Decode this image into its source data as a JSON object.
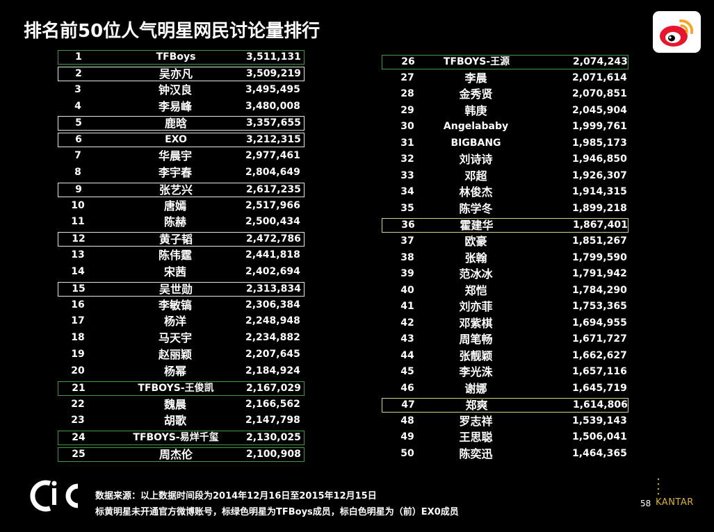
{
  "title": "排名前50位人气明星网民讨论量排行",
  "rankings": [
    {
      "rank": "1",
      "name": "TFBoys",
      "value": "3,511,131",
      "highlight": "green"
    },
    {
      "rank": "2",
      "name": "吴亦凡",
      "value": "3,509,219",
      "highlight": "white"
    },
    {
      "rank": "3",
      "name": "钟汉良",
      "value": "3,495,495",
      "highlight": ""
    },
    {
      "rank": "4",
      "name": "李易峰",
      "value": "3,480,008",
      "highlight": ""
    },
    {
      "rank": "5",
      "name": "鹿晗",
      "value": "3,357,655",
      "highlight": "white"
    },
    {
      "rank": "6",
      "name": "EXO",
      "value": "3,212,315",
      "highlight": "white"
    },
    {
      "rank": "7",
      "name": "华晨宇",
      "value": "2,977,461",
      "highlight": ""
    },
    {
      "rank": "8",
      "name": "李宇春",
      "value": "2,804,649",
      "highlight": ""
    },
    {
      "rank": "9",
      "name": "张艺兴",
      "value": "2,617,235",
      "highlight": "white"
    },
    {
      "rank": "10",
      "name": "唐嫣",
      "value": "2,517,966",
      "highlight": ""
    },
    {
      "rank": "11",
      "name": "陈赫",
      "value": "2,500,434",
      "highlight": ""
    },
    {
      "rank": "12",
      "name": "黄子韬",
      "value": "2,472,786",
      "highlight": "white"
    },
    {
      "rank": "13",
      "name": "陈伟霆",
      "value": "2,441,818",
      "highlight": ""
    },
    {
      "rank": "14",
      "name": "宋茜",
      "value": "2,402,694",
      "highlight": ""
    },
    {
      "rank": "15",
      "name": "吴世勋",
      "value": "2,313,834",
      "highlight": "white"
    },
    {
      "rank": "16",
      "name": "李敏镐",
      "value": "2,306,384",
      "highlight": ""
    },
    {
      "rank": "17",
      "name": "杨洋",
      "value": "2,248,948",
      "highlight": ""
    },
    {
      "rank": "18",
      "name": "马天宇",
      "value": "2,234,882",
      "highlight": ""
    },
    {
      "rank": "19",
      "name": "赵丽颖",
      "value": "2,207,645",
      "highlight": ""
    },
    {
      "rank": "20",
      "name": "杨幂",
      "value": "2,184,924",
      "highlight": ""
    },
    {
      "rank": "21",
      "name": "TFBOYS-王俊凯",
      "value": "2,167,029",
      "highlight": "green"
    },
    {
      "rank": "22",
      "name": "魏晨",
      "value": "2,166,562",
      "highlight": ""
    },
    {
      "rank": "23",
      "name": "胡歌",
      "value": "2,147,798",
      "highlight": ""
    },
    {
      "rank": "24",
      "name": "TFBOYS-易烊千玺",
      "value": "2,130,025",
      "highlight": "green"
    },
    {
      "rank": "25",
      "name": "周杰伦",
      "value": "2,100,908",
      "highlight": "green"
    },
    {
      "rank": "26",
      "name": "TFBOYS-王源",
      "value": "2,074,243",
      "highlight": "green"
    },
    {
      "rank": "27",
      "name": "李晨",
      "value": "2,071,614",
      "highlight": ""
    },
    {
      "rank": "28",
      "name": "金秀贤",
      "value": "2,070,851",
      "highlight": ""
    },
    {
      "rank": "29",
      "name": "韩庚",
      "value": "2,045,904",
      "highlight": ""
    },
    {
      "rank": "30",
      "name": "Angelababy",
      "value": "1,999,761",
      "highlight": ""
    },
    {
      "rank": "31",
      "name": "BIGBANG",
      "value": "1,985,173",
      "highlight": ""
    },
    {
      "rank": "32",
      "name": "刘诗诗",
      "value": "1,946,850",
      "highlight": ""
    },
    {
      "rank": "33",
      "name": "邓超",
      "value": "1,926,307",
      "highlight": ""
    },
    {
      "rank": "34",
      "name": "林俊杰",
      "value": "1,914,315",
      "highlight": ""
    },
    {
      "rank": "35",
      "name": "陈学冬",
      "value": "1,899,218",
      "highlight": ""
    },
    {
      "rank": "36",
      "name": "霍建华",
      "value": "1,867,401",
      "highlight": "yellow"
    },
    {
      "rank": "37",
      "name": "欧豪",
      "value": "1,851,267",
      "highlight": ""
    },
    {
      "rank": "38",
      "name": "张翰",
      "value": "1,799,590",
      "highlight": ""
    },
    {
      "rank": "39",
      "name": "范冰冰",
      "value": "1,791,942",
      "highlight": ""
    },
    {
      "rank": "40",
      "name": "郑恺",
      "value": "1,784,290",
      "highlight": ""
    },
    {
      "rank": "41",
      "name": "刘亦菲",
      "value": "1,753,365",
      "highlight": ""
    },
    {
      "rank": "42",
      "name": "邓紫棋",
      "value": "1,694,955",
      "highlight": ""
    },
    {
      "rank": "43",
      "name": "周笔畅",
      "value": "1,671,727",
      "highlight": ""
    },
    {
      "rank": "44",
      "name": "张靓颖",
      "value": "1,662,627",
      "highlight": ""
    },
    {
      "rank": "45",
      "name": "李光洙",
      "value": "1,657,116",
      "highlight": ""
    },
    {
      "rank": "46",
      "name": "谢娜",
      "value": "1,645,719",
      "highlight": ""
    },
    {
      "rank": "47",
      "name": "郑爽",
      "value": "1,614,806",
      "highlight": "yellow"
    },
    {
      "rank": "48",
      "name": "罗志祥",
      "value": "1,539,143",
      "highlight": ""
    },
    {
      "rank": "49",
      "name": "王思聪",
      "value": "1,506,041",
      "highlight": ""
    },
    {
      "rank": "50",
      "name": "陈奕迅",
      "value": "1,464,365",
      "highlight": ""
    }
  ],
  "footer": {
    "source_note": "数据来源：以上数据时间段为2014年12月16日至2015年12月15日",
    "legend_note": "标黄明星未开通官方微博账号，标绿色明星为TFBoys成员，标白色明星为（前）EX0成员",
    "page_number": "58",
    "brand": "KANTAR"
  },
  "icons": {
    "weibo": "weibo-logo-icon",
    "cic": "cic-logo-icon"
  },
  "colors": {
    "background": "#000000",
    "weibo_red": "#e6162d",
    "weibo_orange": "#f5a623",
    "highlight_green": "#3f9a3f",
    "highlight_yellow": "#d9d28a",
    "highlight_white": "#e8e8e8",
    "kantar_gold": "#d9b03a"
  }
}
